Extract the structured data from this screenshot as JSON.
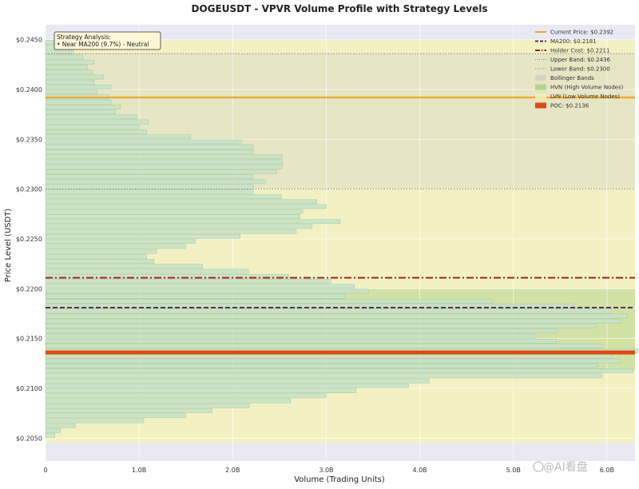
{
  "chart_data": {
    "type": "bar",
    "orientation": "horizontal",
    "title": "DOGEUSDT - VPVR Volume Profile with Strategy Levels",
    "xlabel": "Volume (Trading Units)",
    "ylabel": "Price Level (USDT)",
    "xlim": [
      0,
      6.3
    ],
    "ylim": [
      0.2027,
      0.2465
    ],
    "x_ticks": [
      {
        "v": 0,
        "label": "0"
      },
      {
        "v": 1,
        "label": "1.0B"
      },
      {
        "v": 2,
        "label": "2.0B"
      },
      {
        "v": 3,
        "label": "3.0B"
      },
      {
        "v": 4,
        "label": "4.0B"
      },
      {
        "v": 5,
        "label": "5.0B"
      },
      {
        "v": 6,
        "label": "6.0B"
      }
    ],
    "y_ticks": [
      {
        "v": 0.205,
        "label": "$0.2050"
      },
      {
        "v": 0.21,
        "label": "$0.2100"
      },
      {
        "v": 0.215,
        "label": "$0.2150"
      },
      {
        "v": 0.22,
        "label": "$0.2200"
      },
      {
        "v": 0.225,
        "label": "$0.2250"
      },
      {
        "v": 0.23,
        "label": "$0.2300"
      },
      {
        "v": 0.235,
        "label": "$0.2350"
      },
      {
        "v": 0.24,
        "label": "$0.2400"
      },
      {
        "v": 0.245,
        "label": "$0.2450"
      }
    ],
    "bin_price_min": 0.205,
    "bin_price_max": 0.245,
    "bin_count": 80,
    "volumes": [
      0.1,
      0.16,
      0.32,
      1.05,
      1.5,
      1.78,
      2.18,
      2.62,
      3.0,
      3.32,
      3.88,
      4.1,
      5.95,
      6.28,
      5.9,
      6.15,
      6.05,
      6.33,
      5.95,
      5.46,
      5.24,
      5.46,
      5.88,
      6.15,
      6.22,
      6.05,
      5.65,
      4.78,
      3.2,
      3.45,
      3.3,
      3.05,
      2.6,
      2.17,
      1.68,
      1.16,
      1.08,
      1.19,
      1.5,
      1.6,
      2.08,
      2.68,
      2.85,
      3.15,
      2.72,
      2.75,
      3.0,
      2.9,
      2.52,
      2.22,
      2.22,
      2.35,
      2.22,
      2.47,
      2.53,
      2.53,
      2.53,
      2.22,
      2.22,
      2.1,
      1.55,
      1.08,
      1.0,
      1.1,
      0.98,
      0.75,
      0.8,
      0.7,
      0.68,
      0.55,
      0.7,
      0.52,
      0.62,
      0.5,
      0.45,
      0.52,
      0.4,
      0.3,
      0.25,
      0.35
    ],
    "levels": {
      "current_price": 0.2392,
      "ma200": 0.2181,
      "holder_cost": 0.2211,
      "upper_band": 0.2436,
      "lower_band": 0.23,
      "poc": 0.2136
    },
    "zones": {
      "hvn": [
        0.2118,
        0.22
      ],
      "lvn": [
        0.2045,
        0.245
      ],
      "bollinger": [
        0.23,
        0.2436
      ]
    },
    "legend": {
      "placement": "top-right",
      "entries": [
        {
          "key": "current",
          "label": "Current Price: $0.2392"
        },
        {
          "key": "ma200",
          "label": "MA200: $0.2181"
        },
        {
          "key": "holder",
          "label": "Holder Cost: $0.2211"
        },
        {
          "key": "upper",
          "label": "Upper Band: $0.2436"
        },
        {
          "key": "lower",
          "label": "Lower Band: $0.2300"
        },
        {
          "key": "bollinger",
          "label": "Bollinger Bands"
        },
        {
          "key": "hvn",
          "label": "HVN (High Volume Nodes)"
        },
        {
          "key": "lvn",
          "label": "LVN (Low Volume Nodes)"
        },
        {
          "key": "poc",
          "label": "POC: $0.2136"
        }
      ]
    },
    "annotation": {
      "placement": "top-left",
      "lines": [
        "Strategy Analysis:",
        "• Near MA200 (9.7%) - Neutral"
      ]
    },
    "grid": true
  },
  "colors": {
    "plot_bg": "#e9e9f3",
    "bar_fill": "#c8e3c8",
    "bar_edge": "#9fc79f",
    "current_price": "#f5a623",
    "ma200": "#5b2a6e",
    "holder_cost": "#a32222",
    "band": "#888888",
    "poc": "#e04a10",
    "hvn_zone": "#a8d080",
    "lvn_zone": "#f4f2b8",
    "bollinger_zone": "#cfcfc8"
  },
  "watermark": {
    "text": "@AI看盘"
  }
}
